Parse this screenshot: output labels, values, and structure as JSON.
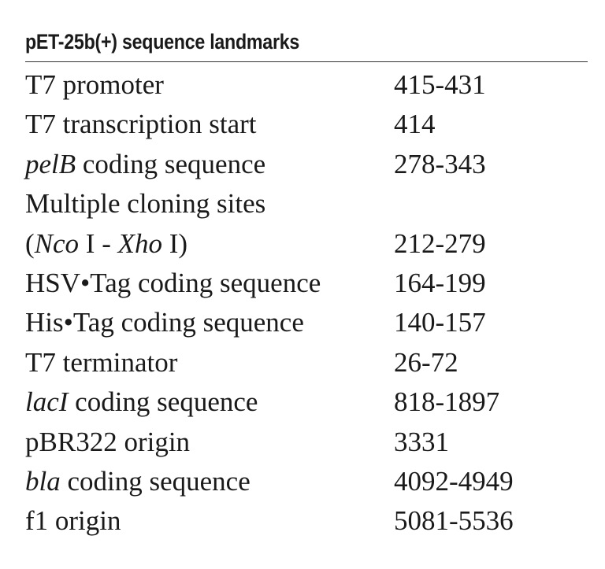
{
  "title": "pET-25b(+) sequence landmarks",
  "rows": [
    {
      "feature": [
        {
          "text": "T7 promoter",
          "italic": false
        }
      ],
      "position": "415-431"
    },
    {
      "feature": [
        {
          "text": "T7 transcription start",
          "italic": false
        }
      ],
      "position": "414"
    },
    {
      "feature": [
        {
          "text": "pelB",
          "italic": true
        },
        {
          "text": " coding sequence",
          "italic": false
        }
      ],
      "position": "278-343"
    },
    {
      "feature": [
        {
          "text": "Multiple cloning sites",
          "italic": false
        }
      ],
      "position": ""
    },
    {
      "feature": [
        {
          "text": "(",
          "italic": false
        },
        {
          "text": "Nco",
          "italic": true
        },
        {
          "text": " I - ",
          "italic": false
        },
        {
          "text": "Xho",
          "italic": true
        },
        {
          "text": " I)",
          "italic": false
        }
      ],
      "position": "212-279"
    },
    {
      "feature": [
        {
          "text": "HSV•Tag coding sequence",
          "italic": false
        }
      ],
      "position": "164-199"
    },
    {
      "feature": [
        {
          "text": "His•Tag coding sequence",
          "italic": false
        }
      ],
      "position": "140-157"
    },
    {
      "feature": [
        {
          "text": "T7 terminator",
          "italic": false
        }
      ],
      "position": "26-72"
    },
    {
      "feature": [
        {
          "text": "lacI",
          "italic": true
        },
        {
          "text": " coding sequence",
          "italic": false
        }
      ],
      "position": "818-1897"
    },
    {
      "feature": [
        {
          "text": "pBR322 origin",
          "italic": false
        }
      ],
      "position": "3331"
    },
    {
      "feature": [
        {
          "text": "bla",
          "italic": true
        },
        {
          "text": " coding sequence",
          "italic": false
        }
      ],
      "position": "4092-4949"
    },
    {
      "feature": [
        {
          "text": "f1 origin",
          "italic": false
        }
      ],
      "position": "5081-5536"
    }
  ]
}
